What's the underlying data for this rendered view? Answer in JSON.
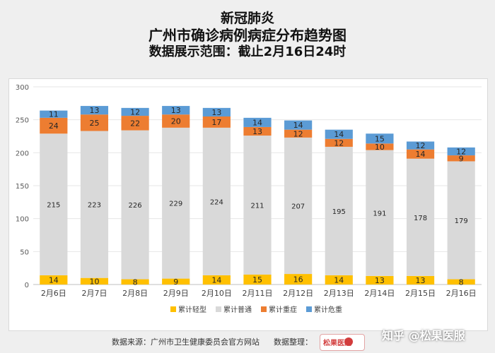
{
  "titles": {
    "line1": "新冠肺炎",
    "line2": "广州市确诊病例病症分布趋势图",
    "line3": "数据展示范围：截止2月16日24时"
  },
  "footer": {
    "source": "数据来源：广州市卫生健康委员会官方网站",
    "organizer": "数据整理：",
    "logo_text": "松果医院"
  },
  "watermark": "知乎 @松果医服",
  "colors": {
    "mild": "#FFC000",
    "normal": "#D9D9D9",
    "severe": "#ED7D31",
    "critical": "#5B9BD5"
  },
  "chart_data": {
    "type": "bar",
    "stacked": true,
    "categories": [
      "2月6日",
      "2月7日",
      "2月8日",
      "2月9日",
      "2月10日",
      "2月11日",
      "2月12日",
      "2月13日",
      "2月14日",
      "2月15日",
      "2月16日"
    ],
    "series": [
      {
        "name": "累计轻型",
        "values": [
          14,
          10,
          8,
          9,
          14,
          15,
          16,
          14,
          13,
          13,
          8
        ]
      },
      {
        "name": "累计普通",
        "values": [
          215,
          223,
          226,
          229,
          224,
          211,
          207,
          195,
          191,
          178,
          179
        ]
      },
      {
        "name": "累计重症",
        "values": [
          24,
          25,
          22,
          20,
          17,
          13,
          12,
          12,
          10,
          14,
          9
        ]
      },
      {
        "name": "累计危重",
        "values": [
          11,
          13,
          12,
          13,
          13,
          14,
          14,
          14,
          15,
          12,
          12
        ]
      }
    ],
    "ylim": [
      0,
      300
    ],
    "yticks": [
      0,
      50,
      100,
      150,
      200,
      250,
      300
    ],
    "grid": true,
    "legend": "bottom"
  }
}
